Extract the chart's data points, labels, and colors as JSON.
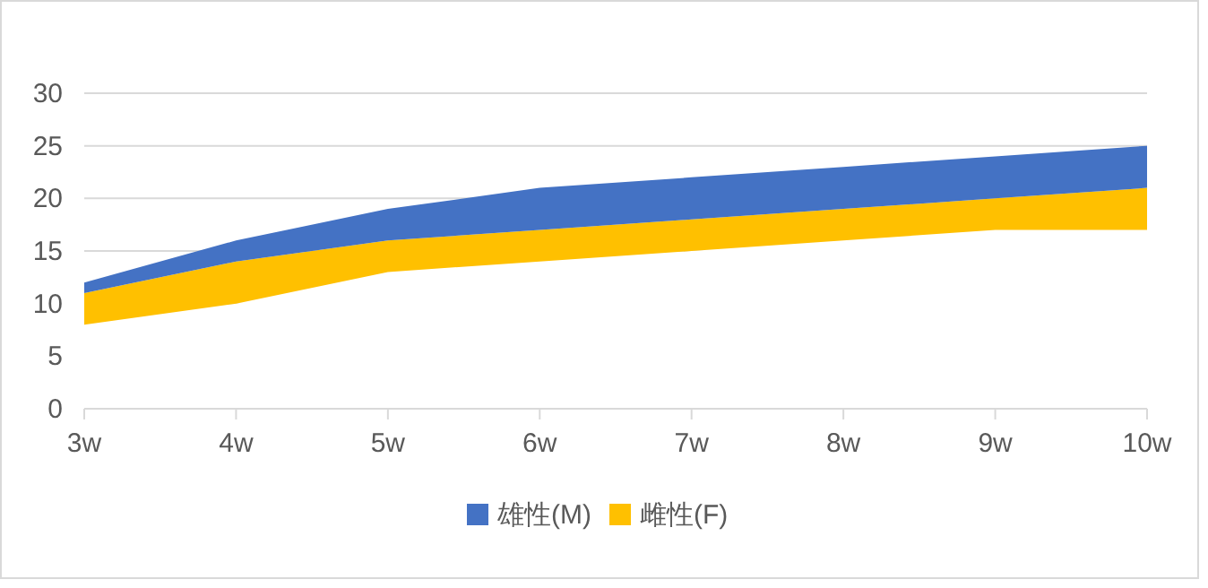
{
  "chart_data": {
    "type": "area",
    "stacked": true,
    "categories": [
      "3w",
      "4w",
      "5w",
      "6w",
      "7w",
      "8w",
      "9w",
      "10w"
    ],
    "series": [
      {
        "color": "#ffffff",
        "values": [
          8,
          10,
          13,
          14,
          15,
          16,
          17,
          17
        ]
      },
      {
        "name": "雌性(F)",
        "color": "#ffc000",
        "values": [
          3,
          4,
          3,
          3,
          3,
          3,
          3,
          4
        ]
      },
      {
        "name": "雄性(M)",
        "color": "#4472c4",
        "values": [
          1,
          2,
          3,
          4,
          4,
          4,
          4,
          4
        ]
      }
    ],
    "ylim": [
      0,
      30
    ],
    "yticks": [
      0,
      5,
      10,
      15,
      20,
      25,
      30
    ],
    "grid": "y",
    "legend": "bottom"
  }
}
